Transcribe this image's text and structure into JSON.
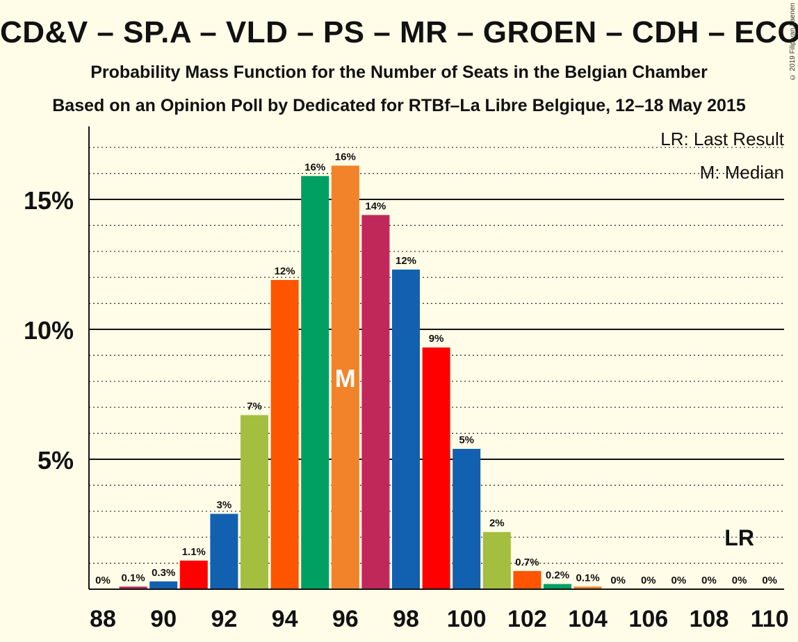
{
  "header": {
    "title": "CD&V – SP.A – VLD – PS – MR – GROEN – CDH – ECOLO",
    "subtitle": "Probability Mass Function for the Number of Seats in the Belgian Chamber",
    "subtitle2": "Based on an Opinion Poll by Dedicated for RTBf–La Libre Belgique, 12–18 May 2015",
    "copyright": "© 2019 Filip van Laenen"
  },
  "legend": {
    "last_result": "LR: Last Result",
    "median": "M: Median"
  },
  "chart_data": {
    "type": "bar",
    "categories": [
      88,
      89,
      90,
      91,
      92,
      93,
      94,
      95,
      96,
      97,
      98,
      99,
      100,
      101,
      102,
      103,
      104,
      105,
      106,
      107,
      108,
      109,
      110
    ],
    "values": [
      0,
      0.1,
      0.3,
      1.1,
      2.9,
      6.7,
      11.9,
      15.9,
      16.3,
      14.4,
      12.3,
      9.3,
      5.4,
      2.2,
      0.7,
      0.2,
      0.1,
      0,
      0,
      0,
      0,
      0,
      0
    ],
    "value_labels": [
      "0%",
      "0.1%",
      "0.3%",
      "1.1%",
      "3%",
      "7%",
      "12%",
      "16%",
      "16%",
      "14%",
      "12%",
      "9%",
      "5%",
      "2%",
      "0.7%",
      "0.2%",
      "0.1%",
      "0%",
      "0%",
      "0%",
      "0%",
      "0%",
      "0%"
    ],
    "bar_colors": [
      "#FFEE00",
      "#C0285A",
      "#1260B0",
      "#FF0000",
      "#1260B0",
      "#A4BE40",
      "#FF5500",
      "#00A062",
      "#F2832A",
      "#C0285A",
      "#1260B0",
      "#FF0000",
      "#1260B0",
      "#A4BE40",
      "#FF5500",
      "#00A062",
      "#F2832A",
      "#C0285A",
      "#1260B0",
      "#FF0000",
      "#1260B0",
      "#A4BE40",
      "#FF5500"
    ],
    "x_tick_labels": [
      "88",
      "90",
      "92",
      "94",
      "96",
      "98",
      "100",
      "102",
      "104",
      "106",
      "108",
      "110"
    ],
    "y_ticks": [
      5,
      10,
      15
    ],
    "y_tick_labels": [
      "5%",
      "10%",
      "15%"
    ],
    "ylim": [
      0,
      17.6
    ],
    "median_seat": 96,
    "median_marker": "M",
    "last_result_seat": 109,
    "last_result_marker": "LR",
    "last_result_value": 2
  }
}
